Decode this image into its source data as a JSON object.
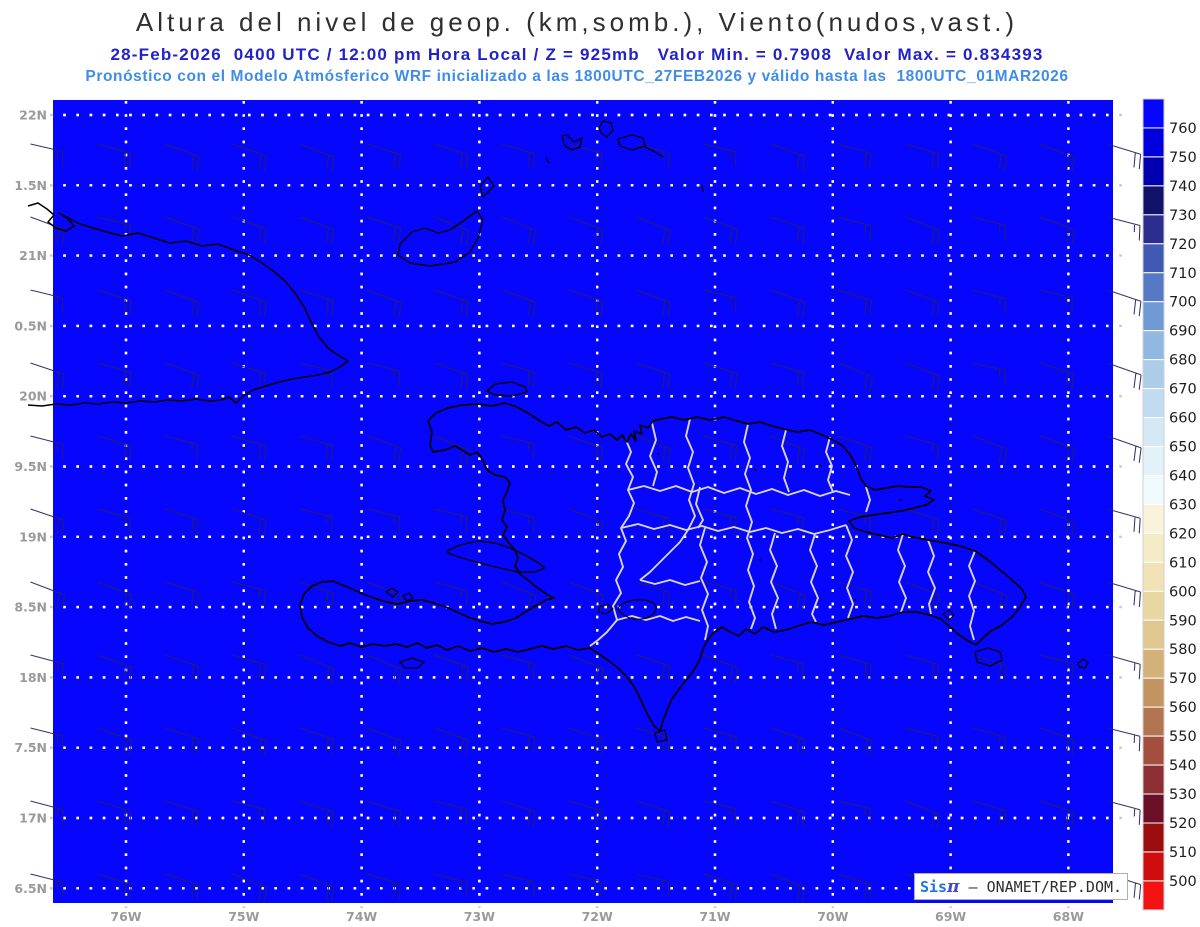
{
  "header": {
    "title": "Altura del nivel de geop. (km,somb.), Viento(nudos,vast.)",
    "subtitle_run": "28-Feb-2026  0400 UTC / 12:00 pm Hora Local / Z = 925mb   Valor Min. = 0.7908  Valor Max. = 0.834393",
    "subtitle_model": "Pronóstico con el Modelo Atmósferico WRF inicializado a las 1800UTC_27FEB2026 y válido hasta las  1800UTC_01MAR2026"
  },
  "axes": {
    "y_labels": [
      "22N",
      "1.5N",
      "21N",
      "0.5N",
      "20N",
      "9.5N",
      "19N",
      "8.5N",
      "18N",
      "7.5N",
      "17N",
      "6.5N"
    ],
    "x_labels": [
      "76W",
      "75W",
      "74W",
      "73W",
      "72W",
      "71W",
      "70W",
      "69W",
      "68W"
    ]
  },
  "colorbar": {
    "tick_labels": [
      "760",
      "750",
      "740",
      "730",
      "720",
      "710",
      "700",
      "690",
      "680",
      "670",
      "660",
      "650",
      "640",
      "630",
      "620",
      "610",
      "600",
      "590",
      "580",
      "570",
      "560",
      "550",
      "540",
      "530",
      "520",
      "510",
      "500"
    ],
    "colors": [
      "#0606fe",
      "#0000df",
      "#0000b0",
      "#12126b",
      "#2d2d8f",
      "#4059b2",
      "#5579c4",
      "#6f9ad4",
      "#90b8e2",
      "#abcdea",
      "#c1dcf0",
      "#d4e9f5",
      "#e3f1f9",
      "#f1fbfd",
      "#f8f3da",
      "#f4ecc7",
      "#f0e2b4",
      "#e9d7a2",
      "#dfc78f",
      "#d2b279",
      "#c2945f",
      "#b1764f",
      "#a24f3e",
      "#8c2e34",
      "#6a0f27",
      "#9b0c0c",
      "#ce0e0e",
      "#f31111"
    ]
  },
  "map_colors": {
    "domain_fill": "#0606fe",
    "coastline": "#000000",
    "province_border": "#d6d6d6",
    "wind_barb": "#23235e",
    "grid_over_map": "#ffffff",
    "grid_margin": "#c8c8c8"
  },
  "credit": {
    "sis": "Sis",
    "pi": "π",
    "sep": " – ",
    "org": "ONAMET/REP.DOM."
  },
  "chart_data": {
    "type": "heatmap",
    "title": "Altura del nivel de geop. (km,somb.), Viento(nudos,vast.)",
    "level": "925mb",
    "valid_time": "28-Feb-2026 0400 UTC / 12:00 pm Hora Local",
    "model": "WRF",
    "initialized": "1800UTC_27FEB2026",
    "valid_until": "1800UTC_01MAR2026",
    "valor_min": 0.7908,
    "valor_max": 0.834393,
    "x_ticks": [
      "76W",
      "75W",
      "74W",
      "73W",
      "72W",
      "71W",
      "70W",
      "69W",
      "68W"
    ],
    "y_ticks": [
      "22N",
      "1.5N",
      "21N",
      "0.5N",
      "20N",
      "9.5N",
      "19N",
      "8.5N",
      "18N",
      "7.5N",
      "17N",
      "6.5N"
    ],
    "colorbar_levels": [
      760,
      750,
      740,
      730,
      720,
      710,
      700,
      690,
      680,
      670,
      660,
      650,
      640,
      630,
      620,
      610,
      600,
      590,
      580,
      570,
      560,
      550,
      540,
      530,
      520,
      510,
      500
    ],
    "field_note": "entire domain uniformly shaded in the topmost colorbar color (all values above scale)",
    "wind": {
      "units": "nudos",
      "typical_direction": "ENE",
      "typical_speed_kt": 20,
      "symbol": "barbs"
    },
    "region": "Hispaniola (Haiti / Dominican Republic), eastern Cuba, Turks & Caicos, Inagua"
  }
}
